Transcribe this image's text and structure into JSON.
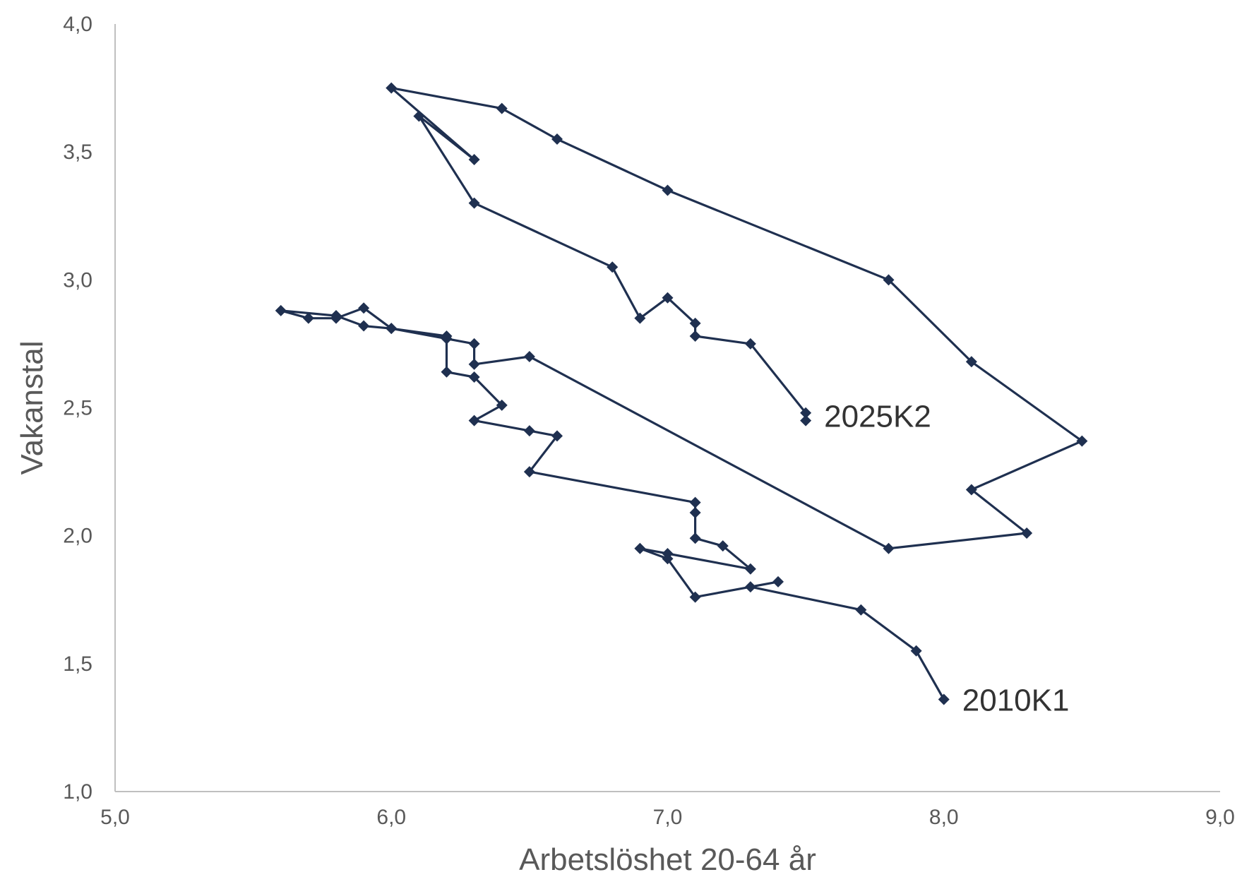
{
  "chart_data": {
    "type": "line",
    "title": "",
    "xlabel": "Arbetslöshet 20-64 år",
    "ylabel": "Vakanstal",
    "xlim": [
      5.0,
      9.0
    ],
    "ylim": [
      1.0,
      4.0
    ],
    "x_ticks": [
      "5,0",
      "6,0",
      "7,0",
      "8,0",
      "9,0"
    ],
    "y_ticks": [
      "1,0",
      "1,5",
      "2,0",
      "2,5",
      "3,0",
      "3,5",
      "4,0"
    ],
    "x_tick_values": [
      5,
      6,
      7,
      8,
      9
    ],
    "y_tick_values": [
      1,
      1.5,
      2,
      2.5,
      3,
      3.5,
      4
    ],
    "grid": false,
    "legend": "none",
    "line_color": "#1f3050",
    "annotations": [
      {
        "text": "2025K2",
        "x": 7.5,
        "y": 2.47
      },
      {
        "text": "2010K1",
        "x": 8.0,
        "y": 1.36
      }
    ],
    "series": [
      {
        "points": [
          [
            8.0,
            1.36
          ],
          [
            7.9,
            1.55
          ],
          [
            7.7,
            1.71
          ],
          [
            7.3,
            1.8
          ],
          [
            7.4,
            1.82
          ],
          [
            7.1,
            1.76
          ],
          [
            7.0,
            1.91
          ],
          [
            6.9,
            1.95
          ],
          [
            7.0,
            1.93
          ],
          [
            7.3,
            1.87
          ],
          [
            7.2,
            1.96
          ],
          [
            7.1,
            1.99
          ],
          [
            7.1,
            2.09
          ],
          [
            7.1,
            2.13
          ],
          [
            6.5,
            2.25
          ],
          [
            6.6,
            2.39
          ],
          [
            6.5,
            2.41
          ],
          [
            6.3,
            2.45
          ],
          [
            6.4,
            2.51
          ],
          [
            6.3,
            2.62
          ],
          [
            6.2,
            2.64
          ],
          [
            6.2,
            2.78
          ],
          [
            6.0,
            2.81
          ],
          [
            5.9,
            2.82
          ],
          [
            5.8,
            2.86
          ],
          [
            5.6,
            2.88
          ],
          [
            5.7,
            2.85
          ],
          [
            5.8,
            2.85
          ],
          [
            5.9,
            2.89
          ],
          [
            6.0,
            2.81
          ],
          [
            6.2,
            2.77
          ],
          [
            6.3,
            2.75
          ],
          [
            6.3,
            2.67
          ],
          [
            6.5,
            2.7
          ],
          [
            7.8,
            1.95
          ],
          [
            8.3,
            2.01
          ],
          [
            8.1,
            2.18
          ],
          [
            8.5,
            2.37
          ],
          [
            8.1,
            2.68
          ],
          [
            7.8,
            3.0
          ],
          [
            7.0,
            3.35
          ],
          [
            6.6,
            3.55
          ],
          [
            6.4,
            3.67
          ],
          [
            6.0,
            3.75
          ],
          [
            6.3,
            3.47
          ],
          [
            6.1,
            3.64
          ],
          [
            6.3,
            3.3
          ],
          [
            6.8,
            3.05
          ],
          [
            6.9,
            2.85
          ],
          [
            7.0,
            2.93
          ],
          [
            7.1,
            2.83
          ],
          [
            7.1,
            2.78
          ],
          [
            7.3,
            2.75
          ],
          [
            7.5,
            2.48
          ],
          [
            7.5,
            2.45
          ]
        ]
      }
    ]
  }
}
